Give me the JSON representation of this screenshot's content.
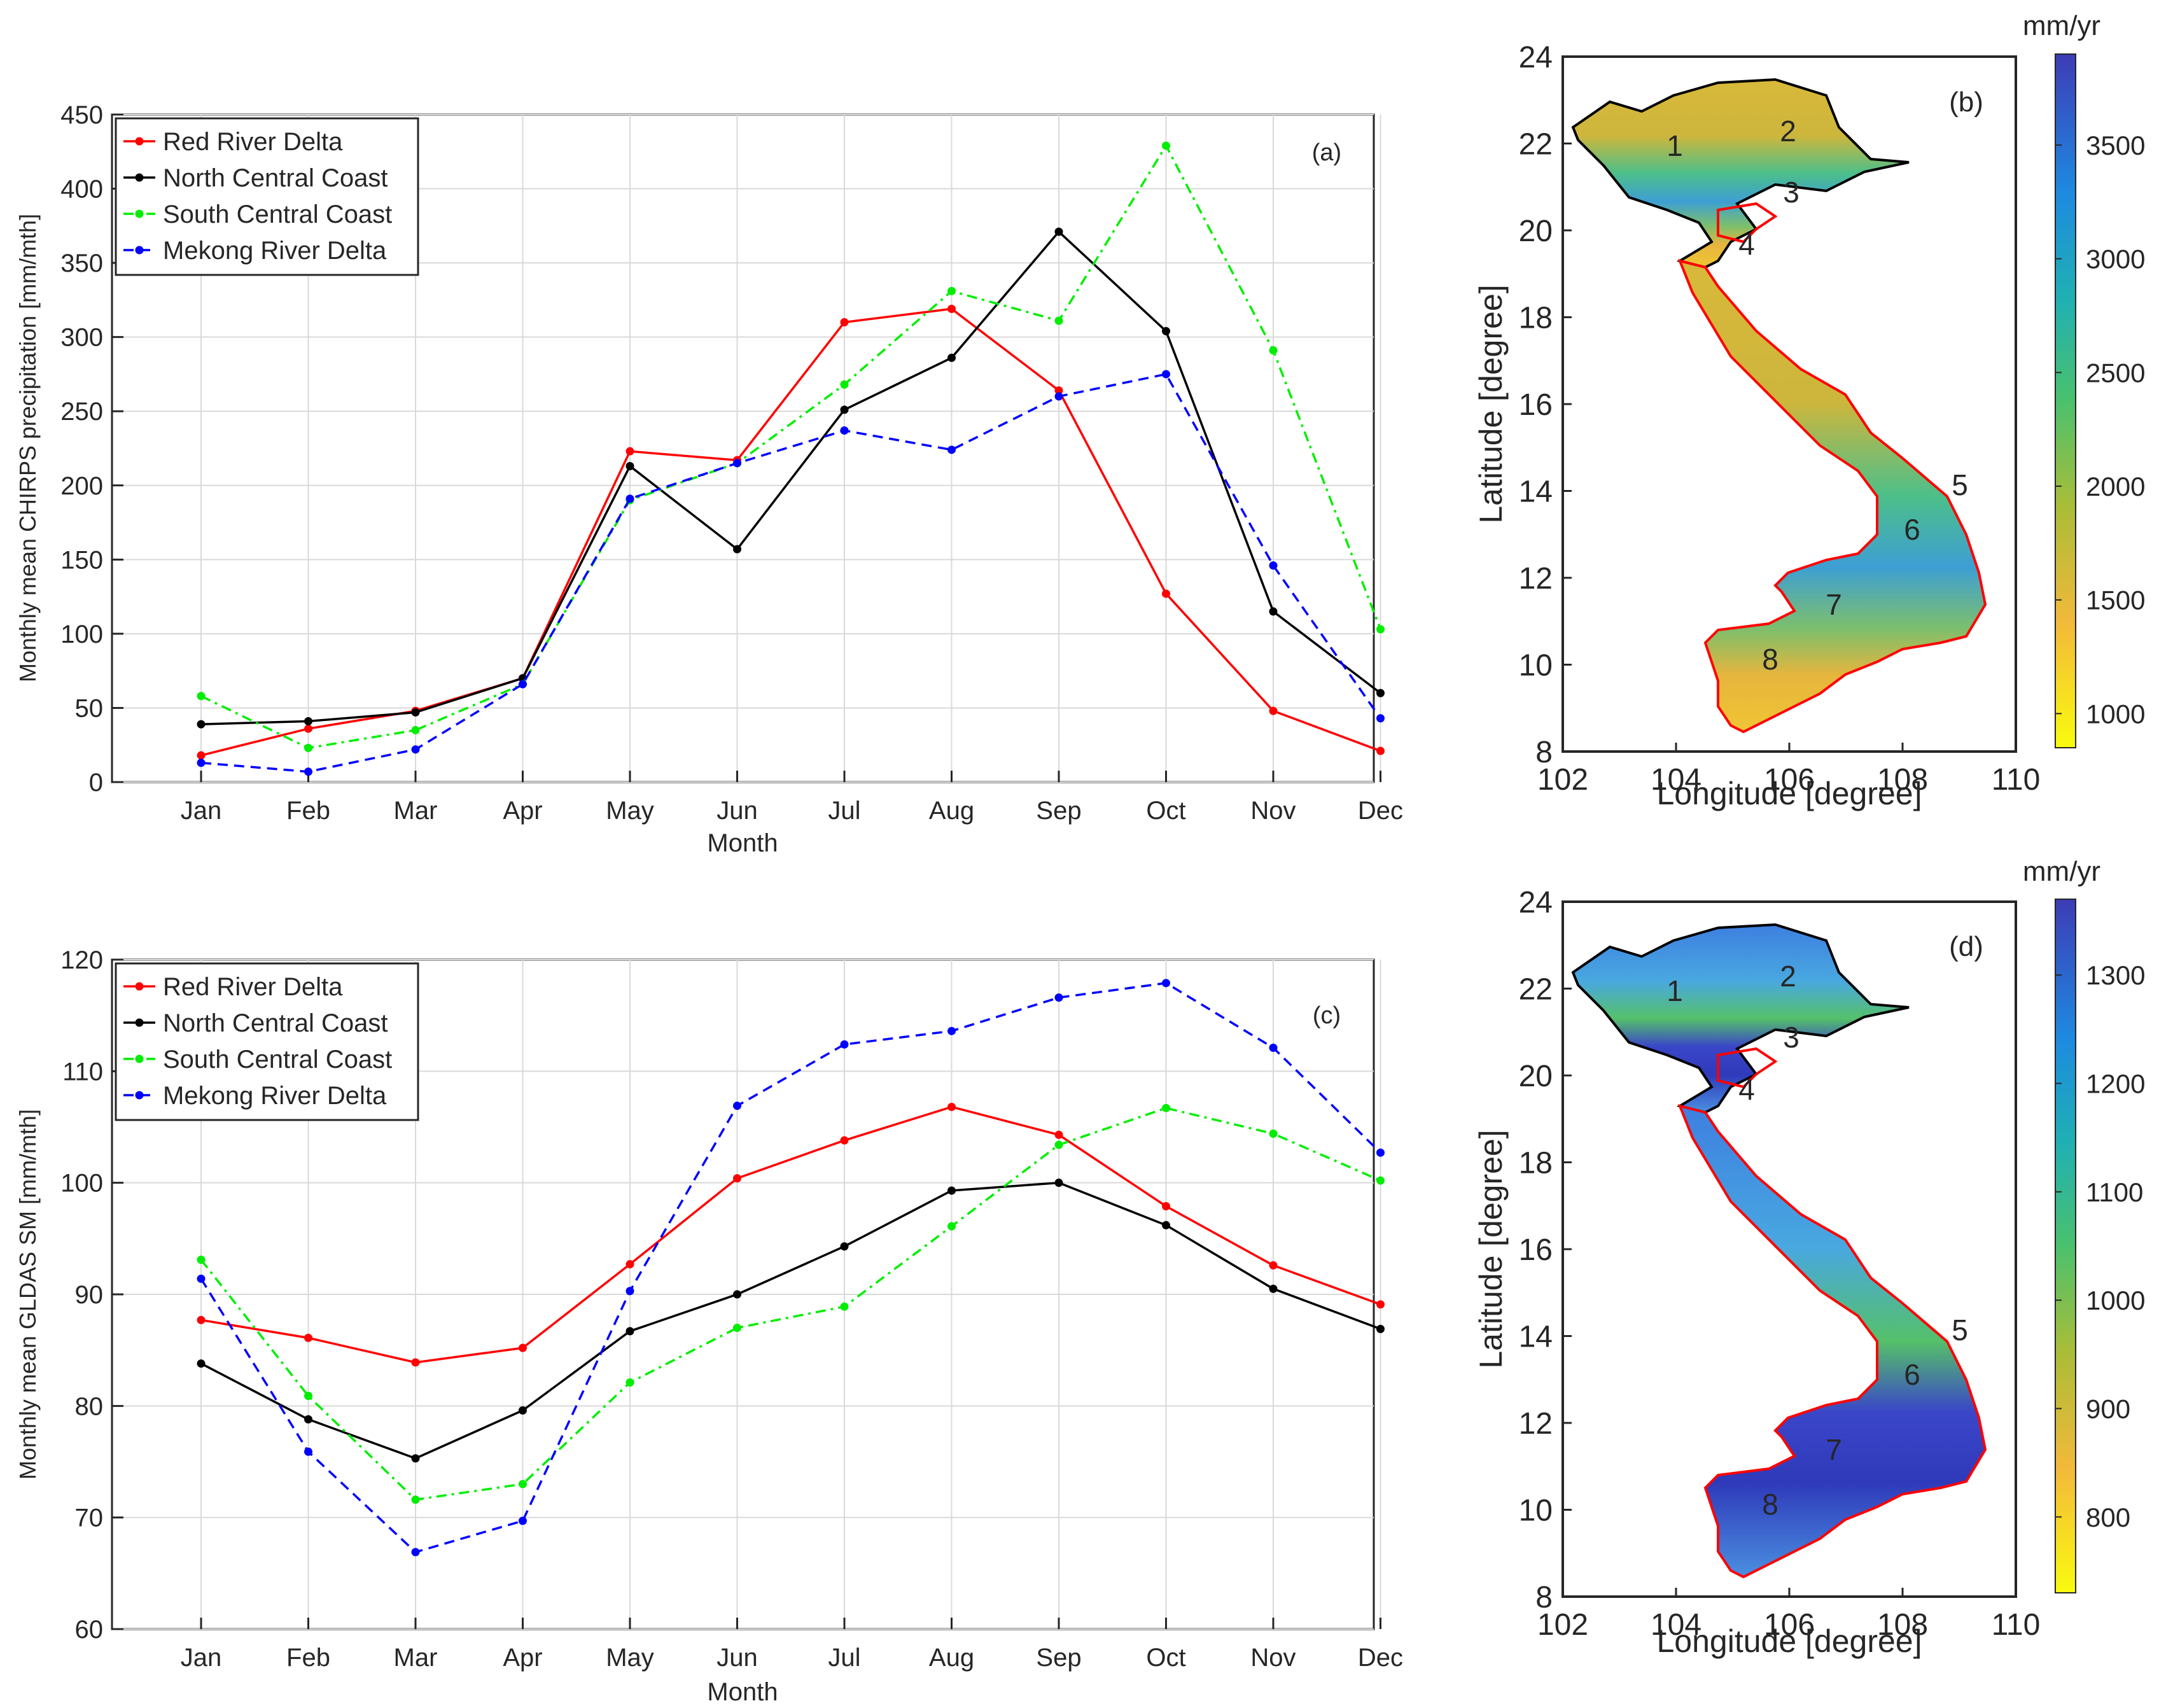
{
  "chart_data": [
    {
      "type": "line",
      "panel": "(a)",
      "ylabel": "Monthly mean CHIRPS precipitation [mm/mth]",
      "xlabel": "Month",
      "ylim": [
        0,
        450
      ],
      "yticks": [
        0,
        50,
        100,
        150,
        200,
        250,
        300,
        350,
        400,
        450
      ],
      "categories": [
        "Jan",
        "Feb",
        "Mar",
        "Apr",
        "May",
        "Jun",
        "Jul",
        "Aug",
        "Sep",
        "Oct",
        "Nov",
        "Dec"
      ],
      "grid": true,
      "legend": "top-left",
      "series": [
        {
          "name": "Red River Delta",
          "color": "#ff0000",
          "dash": "solid",
          "values": [
            18,
            36,
            48,
            70,
            223,
            217,
            310,
            319,
            264,
            127,
            48,
            21
          ]
        },
        {
          "name": "North Central Coast",
          "color": "#000000",
          "dash": "solid",
          "values": [
            39,
            41,
            47,
            70,
            213,
            157,
            251,
            286,
            371,
            304,
            115,
            60
          ]
        },
        {
          "name": "South Central Coast",
          "color": "#00ee00",
          "dash": "dashdot",
          "values": [
            58,
            23,
            35,
            66,
            190,
            215,
            268,
            331,
            311,
            429,
            291,
            103
          ]
        },
        {
          "name": "Mekong River Delta",
          "color": "#0000ff",
          "dash": "dash",
          "values": [
            13,
            7,
            22,
            66,
            191,
            215,
            237,
            224,
            260,
            275,
            146,
            43
          ]
        }
      ]
    },
    {
      "type": "line",
      "panel": "(c)",
      "ylabel": "Monthly mean GLDAS SM [mm/mth]",
      "xlabel": "Month",
      "ylim": [
        60,
        120
      ],
      "yticks": [
        60,
        70,
        80,
        90,
        100,
        110,
        120
      ],
      "categories": [
        "Jan",
        "Feb",
        "Mar",
        "Apr",
        "May",
        "Jun",
        "Jul",
        "Aug",
        "Sep",
        "Oct",
        "Nov",
        "Dec"
      ],
      "grid": true,
      "legend": "top-left",
      "series": [
        {
          "name": "Red River Delta",
          "color": "#ff0000",
          "dash": "solid",
          "values": [
            87.7,
            86.1,
            83.9,
            85.2,
            92.7,
            100.4,
            103.8,
            106.8,
            104.3,
            97.9,
            92.6,
            89.1
          ]
        },
        {
          "name": "North Central Coast",
          "color": "#000000",
          "dash": "solid",
          "values": [
            83.8,
            78.8,
            75.3,
            79.6,
            86.7,
            90.0,
            94.3,
            99.3,
            100.0,
            96.2,
            90.5,
            86.9
          ]
        },
        {
          "name": "South Central Coast",
          "color": "#00ee00",
          "dash": "dashdot",
          "values": [
            93.1,
            80.9,
            71.6,
            73.0,
            82.1,
            87.0,
            88.9,
            96.1,
            103.4,
            106.7,
            104.4,
            100.2
          ]
        },
        {
          "name": "Mekong River Delta",
          "color": "#0000ff",
          "dash": "dash",
          "values": [
            91.4,
            75.9,
            66.9,
            69.7,
            90.3,
            106.9,
            112.4,
            113.6,
            116.6,
            117.9,
            112.1,
            102.7
          ]
        }
      ]
    },
    {
      "type": "heatmap",
      "panel": "(b)",
      "xlabel": "Longitude [degree]",
      "ylabel": "Latitude [degree]",
      "xlim": [
        102,
        110
      ],
      "ylim": [
        8,
        24
      ],
      "xticks": [
        102,
        104,
        106,
        108,
        110
      ],
      "yticks": [
        8,
        10,
        12,
        14,
        16,
        18,
        20,
        22,
        24
      ],
      "colorbar_label": "mm/yr",
      "colorbar_ticks": [
        1000,
        1500,
        2000,
        2500,
        3000,
        3500
      ],
      "colorbar_range": [
        850,
        3900
      ],
      "region_labels": [
        "1",
        "2",
        "3",
        "4",
        "5",
        "6",
        "7",
        "8"
      ]
    },
    {
      "type": "heatmap",
      "panel": "(d)",
      "xlabel": "Longitude [degree]",
      "ylabel": "Latitude [degree]",
      "xlim": [
        102,
        110
      ],
      "ylim": [
        8,
        24
      ],
      "xticks": [
        102,
        104,
        106,
        108,
        110
      ],
      "yticks": [
        8,
        10,
        12,
        14,
        16,
        18,
        20,
        22,
        24
      ],
      "colorbar_label": "mm/yr",
      "colorbar_ticks": [
        800,
        900,
        1000,
        1100,
        1200,
        1300
      ],
      "colorbar_range": [
        730,
        1370
      ],
      "region_labels": [
        "1",
        "2",
        "3",
        "4",
        "5",
        "6",
        "7",
        "8"
      ]
    }
  ],
  "colors": {
    "grid": "#d9d9d9",
    "axis": "#262626",
    "map_boundary_red": "#ff0000"
  }
}
